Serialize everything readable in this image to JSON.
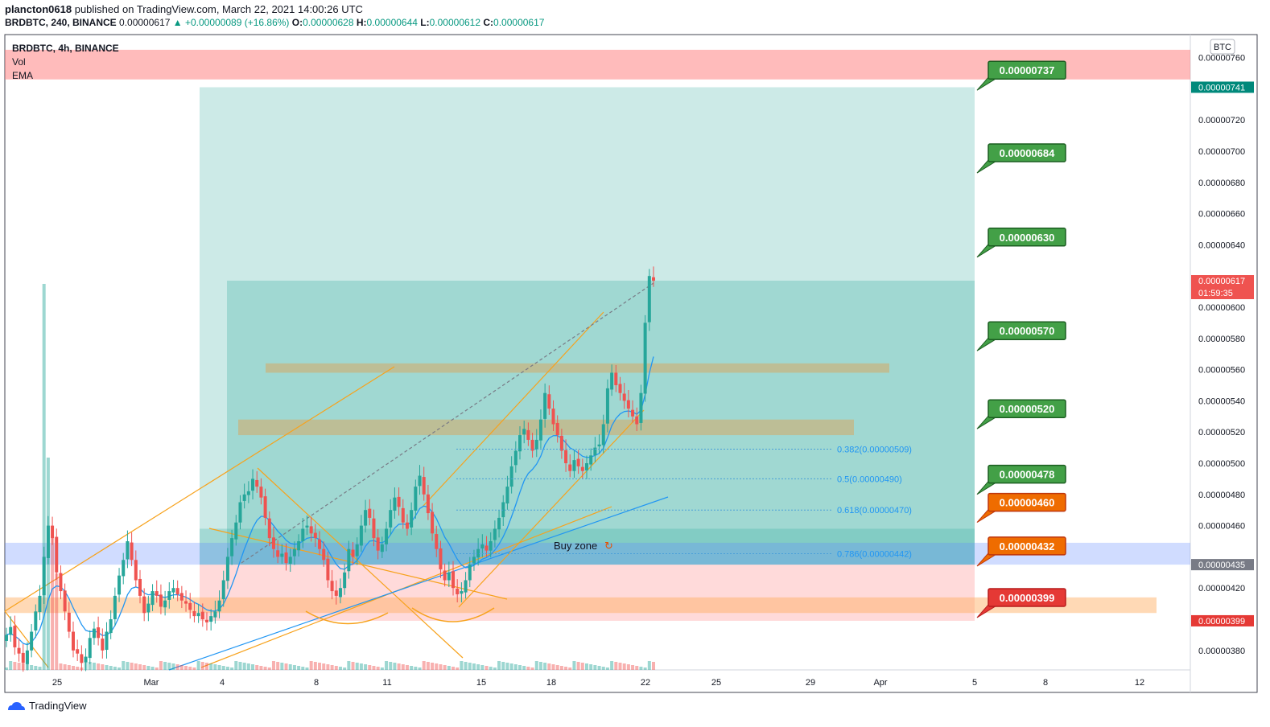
{
  "header": {
    "author": "plancton0618",
    "published_text": "published on TradingView.com, March 22, 2021 14:00:26 UTC",
    "symbol_line": "BRDBTC, 240, BINANCE",
    "last_price": "0.00000617",
    "change": "▲ +0.00000089 (+16.86%)",
    "o_label": "O:",
    "o_value": "0.00000628",
    "h_label": "H:",
    "h_value": "0.00000644",
    "l_label": "L:",
    "l_value": "0.00000612",
    "c_label": "C:",
    "c_value": "0.00000617"
  },
  "legend": {
    "title": "BRDBTC, 4h, BINANCE",
    "vol": "Vol",
    "ema": "EMA"
  },
  "axis": {
    "currency_badge": "BTC",
    "countdown": "01:59:35"
  },
  "footer": {
    "brand": "TradingView"
  },
  "colors": {
    "up": "#26a69a",
    "down": "#ef5350",
    "ema": "#2196f3",
    "trend": "#f7a21c",
    "target_green": "#43a047",
    "target_orange": "#ef6c00",
    "target_red": "#e53935"
  },
  "chart_data": {
    "type": "candlestick",
    "ylim": [
      3.7e-06,
      7.65e-06
    ],
    "y_ticks": [
      "0.00000760",
      "0.00000720",
      "0.00000700",
      "0.00000680",
      "0.00000660",
      "0.00000640",
      "0.00000600",
      "0.00000580",
      "0.00000560",
      "0.00000540",
      "0.00000520",
      "0.00000500",
      "0.00000480",
      "0.00000460",
      "0.00000420",
      "0.00000380"
    ],
    "x_ticks": [
      "25",
      "Mar",
      "4",
      "8",
      "11",
      "15",
      "18",
      "22",
      "25",
      "29",
      "Apr",
      "5",
      "8",
      "12"
    ],
    "price_tags": [
      {
        "value": 7.41e-06,
        "label": "0.00000741",
        "color": "#00897b"
      },
      {
        "value": 6.17e-06,
        "label": "0.00000617",
        "color": "#ef5350"
      },
      {
        "value": 4.35e-06,
        "label": "0.00000435",
        "color": "#787b86"
      },
      {
        "value": 3.99e-06,
        "label": "0.00000399",
        "color": "#e53935"
      }
    ],
    "targets": [
      {
        "value": 7.37e-06,
        "label": "0.00000737",
        "kind": "green"
      },
      {
        "value": 6.84e-06,
        "label": "0.00000684",
        "kind": "green"
      },
      {
        "value": 6.3e-06,
        "label": "0.00000630",
        "kind": "green"
      },
      {
        "value": 5.7e-06,
        "label": "0.00000570",
        "kind": "green"
      },
      {
        "value": 5.2e-06,
        "label": "0.00000520",
        "kind": "green"
      },
      {
        "value": 4.78e-06,
        "label": "0.00000478",
        "kind": "green"
      },
      {
        "value": 4.6e-06,
        "label": "0.00000460",
        "kind": "orange"
      },
      {
        "value": 4.32e-06,
        "label": "0.00000432",
        "kind": "orange"
      },
      {
        "value": 3.99e-06,
        "label": "0.00000399",
        "kind": "red"
      }
    ],
    "fib_levels": [
      {
        "ratio": "0.382",
        "value": 5.09e-06,
        "label": "0.382(0.00000509)"
      },
      {
        "ratio": "0.5",
        "value": 4.9e-06,
        "label": "0.5(0.00000490)"
      },
      {
        "ratio": "0.618",
        "value": 4.7e-06,
        "label": "0.618(0.00000470)"
      },
      {
        "ratio": "0.786",
        "value": 4.42e-06,
        "label": "0.786(0.00000442)"
      }
    ],
    "zones": {
      "resistance_top": [
        7.46e-06,
        7.65e-06
      ],
      "profit_outer": [
        4.35e-06,
        7.41e-06
      ],
      "profit_inner": [
        4.35e-06,
        6.17e-06
      ],
      "stop_loss": [
        3.99e-06,
        4.35e-06
      ],
      "blue_band": [
        4.35e-06,
        4.49e-06
      ],
      "orange_band": [
        4.04e-06,
        4.14e-06
      ],
      "supply_band_1": [
        5.58e-06,
        5.64e-06
      ],
      "supply_band_2": [
        5.18e-06,
        5.28e-06
      ]
    },
    "annotation": "Buy zone",
    "candles_path": [
      3.9e-06,
      3.95e-06,
      3.82e-06,
      3.78e-06,
      3.72e-06,
      3.8e-06,
      3.92e-06,
      4.05e-06,
      4.15e-06,
      4.4e-06,
      4.6e-06,
      4.52e-06,
      4.3e-06,
      4.18e-06,
      4.05e-06,
      3.92e-06,
      3.8e-06,
      3.78e-06,
      3.72e-06,
      3.76e-06,
      3.88e-06,
      3.94e-06,
      3.88e-06,
      3.8e-06,
      3.92e-06,
      4e-06,
      4.15e-06,
      4.28e-06,
      4.38e-06,
      4.5e-06,
      4.38e-06,
      4.25e-06,
      4.15e-06,
      4.04e-06,
      4.1e-06,
      4.18e-06,
      4.15e-06,
      4.08e-06,
      4.12e-06,
      4.18e-06,
      4.2e-06,
      4.16e-06,
      4.12e-06,
      4.1e-06,
      4.06e-06,
      4.02e-06,
      4.04e-06,
      4e-06,
      3.98e-06,
      4.02e-06,
      4.05e-06,
      4.12e-06,
      4.25e-06,
      4.4e-06,
      4.52e-06,
      4.62e-06,
      4.75e-06,
      4.8e-06,
      4.82e-06,
      4.9e-06,
      4.85e-06,
      4.78e-06,
      4.65e-06,
      4.52e-06,
      4.45e-06,
      4.4e-06,
      4.42e-06,
      4.36e-06,
      4.4e-06,
      4.45e-06,
      4.5e-06,
      4.58e-06,
      4.6e-06,
      4.55e-06,
      4.52e-06,
      4.45e-06,
      4.38e-06,
      4.25e-06,
      4.18e-06,
      4.15e-06,
      4.2e-06,
      4.3e-06,
      4.45e-06,
      4.4e-06,
      4.48e-06,
      4.6e-06,
      4.7e-06,
      4.65e-06,
      4.52e-06,
      4.44e-06,
      4.48e-06,
      4.58e-06,
      4.7e-06,
      4.78e-06,
      4.72e-06,
      4.62e-06,
      4.58e-06,
      4.7e-06,
      4.85e-06,
      4.92e-06,
      4.8e-06,
      4.68e-06,
      4.55e-06,
      4.45e-06,
      4.32e-06,
      4.25e-06,
      4.3e-06,
      4.2e-06,
      4.16e-06,
      4.18e-06,
      4.25e-06,
      4.35e-06,
      4.4e-06,
      4.45e-06,
      4.48e-06,
      4.44e-06,
      4.5e-06,
      4.58e-06,
      4.65e-06,
      4.75e-06,
      4.85e-06,
      4.98e-06,
      5.08e-06,
      5.18e-06,
      5.22e-06,
      5.15e-06,
      5.08e-06,
      5.15e-06,
      5.28e-06,
      5.45e-06,
      5.35e-06,
      5.25e-06,
      5.18e-06,
      5.08e-06,
      5e-06,
      4.95e-06,
      5.02e-06,
      4.98e-06,
      4.95e-06,
      5e-06,
      5.05e-06,
      5.1e-06,
      5.12e-06,
      5.25e-06,
      5.48e-06,
      5.58e-06,
      5.5e-06,
      5.45e-06,
      5.4e-06,
      5.35e-06,
      5.3e-06,
      5.25e-06,
      5.45e-06,
      5.9e-06,
      6.2e-06,
      6.17e-06
    ],
    "volume_spikes": [
      {
        "index": 9,
        "value": 1.0
      },
      {
        "index": 10,
        "value": 0.55
      },
      {
        "index": 11,
        "value": 0.35
      },
      {
        "index": 12,
        "value": 0.25
      }
    ]
  }
}
